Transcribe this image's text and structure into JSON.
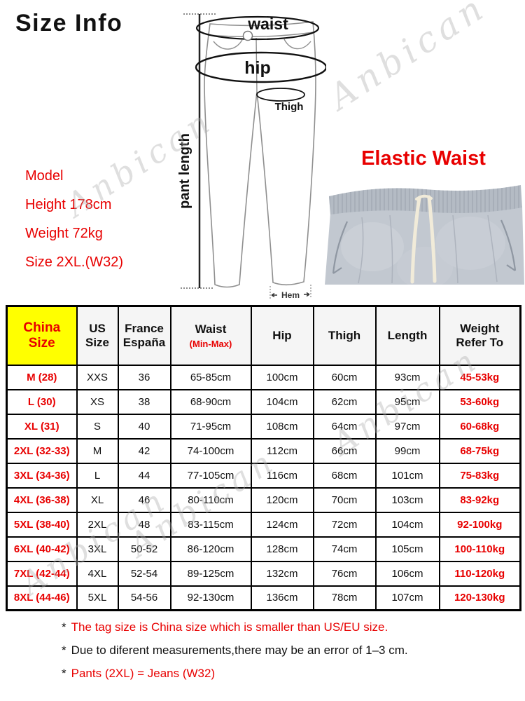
{
  "title": "Size Info",
  "watermark": "Anbican",
  "elastic_waist_label": "Elastic Waist",
  "diagram": {
    "waist": "waist",
    "hip": "hip",
    "thigh": "Thigh",
    "pant_length": "pant length",
    "hem": "Hem"
  },
  "model": {
    "lines": [
      "Model",
      "Height 178cm",
      "Weight 72kg",
      "Size 2XL.(W32)"
    ]
  },
  "size_table": {
    "headers": [
      {
        "lines": [
          "China",
          "Size"
        ]
      },
      {
        "lines": [
          "US",
          "Size"
        ]
      },
      {
        "lines": [
          "France",
          "España"
        ]
      },
      {
        "lines": [
          "Waist"
        ],
        "sub": "(Min-Max)"
      },
      {
        "lines": [
          "Hip"
        ]
      },
      {
        "lines": [
          "Thigh"
        ]
      },
      {
        "lines": [
          "Length"
        ]
      },
      {
        "lines": [
          "Weight",
          "Refer To"
        ]
      }
    ],
    "rows": [
      [
        "M (28)",
        "XXS",
        "36",
        "65-85cm",
        "100cm",
        "60cm",
        "93cm",
        "45-53kg"
      ],
      [
        "L (30)",
        "XS",
        "38",
        "68-90cm",
        "104cm",
        "62cm",
        "95cm",
        "53-60kg"
      ],
      [
        "XL (31)",
        "S",
        "40",
        "71-95cm",
        "108cm",
        "64cm",
        "97cm",
        "60-68kg"
      ],
      [
        "2XL (32-33)",
        "M",
        "42",
        "74-100cm",
        "112cm",
        "66cm",
        "99cm",
        "68-75kg"
      ],
      [
        "3XL (34-36)",
        "L",
        "44",
        "77-105cm",
        "116cm",
        "68cm",
        "101cm",
        "75-83kg"
      ],
      [
        "4XL (36-38)",
        "XL",
        "46",
        "80-110cm",
        "120cm",
        "70cm",
        "103cm",
        "83-92kg"
      ],
      [
        "5XL (38-40)",
        "2XL",
        "48",
        "83-115cm",
        "124cm",
        "72cm",
        "104cm",
        "92-100kg"
      ],
      [
        "6XL (40-42)",
        "3XL",
        "50-52",
        "86-120cm",
        "128cm",
        "74cm",
        "105cm",
        "100-110kg"
      ],
      [
        "7XL (42-44)",
        "4XL",
        "52-54",
        "89-125cm",
        "132cm",
        "76cm",
        "106cm",
        "110-120kg"
      ],
      [
        "8XL (44-46)",
        "5XL",
        "54-56",
        "92-130cm",
        "136cm",
        "78cm",
        "107cm",
        "120-130kg"
      ]
    ]
  },
  "notes": {
    "bullet": "*",
    "items": [
      {
        "text": "The tag size is China size which is smaller than US/EU size.",
        "color": "red"
      },
      {
        "text": "Due to diferent measurements,there may be an error of 1–3 cm.",
        "color": "black"
      },
      {
        "text": "Pants (2XL) = Jeans (W32)",
        "color": "red"
      }
    ]
  },
  "colors": {
    "accent_red": "#e80000",
    "china_yellow": "#ffff00",
    "table_border": "#000000",
    "photo_gray": "#c2c8d0",
    "watermark_gray": "#d8d8d8"
  }
}
